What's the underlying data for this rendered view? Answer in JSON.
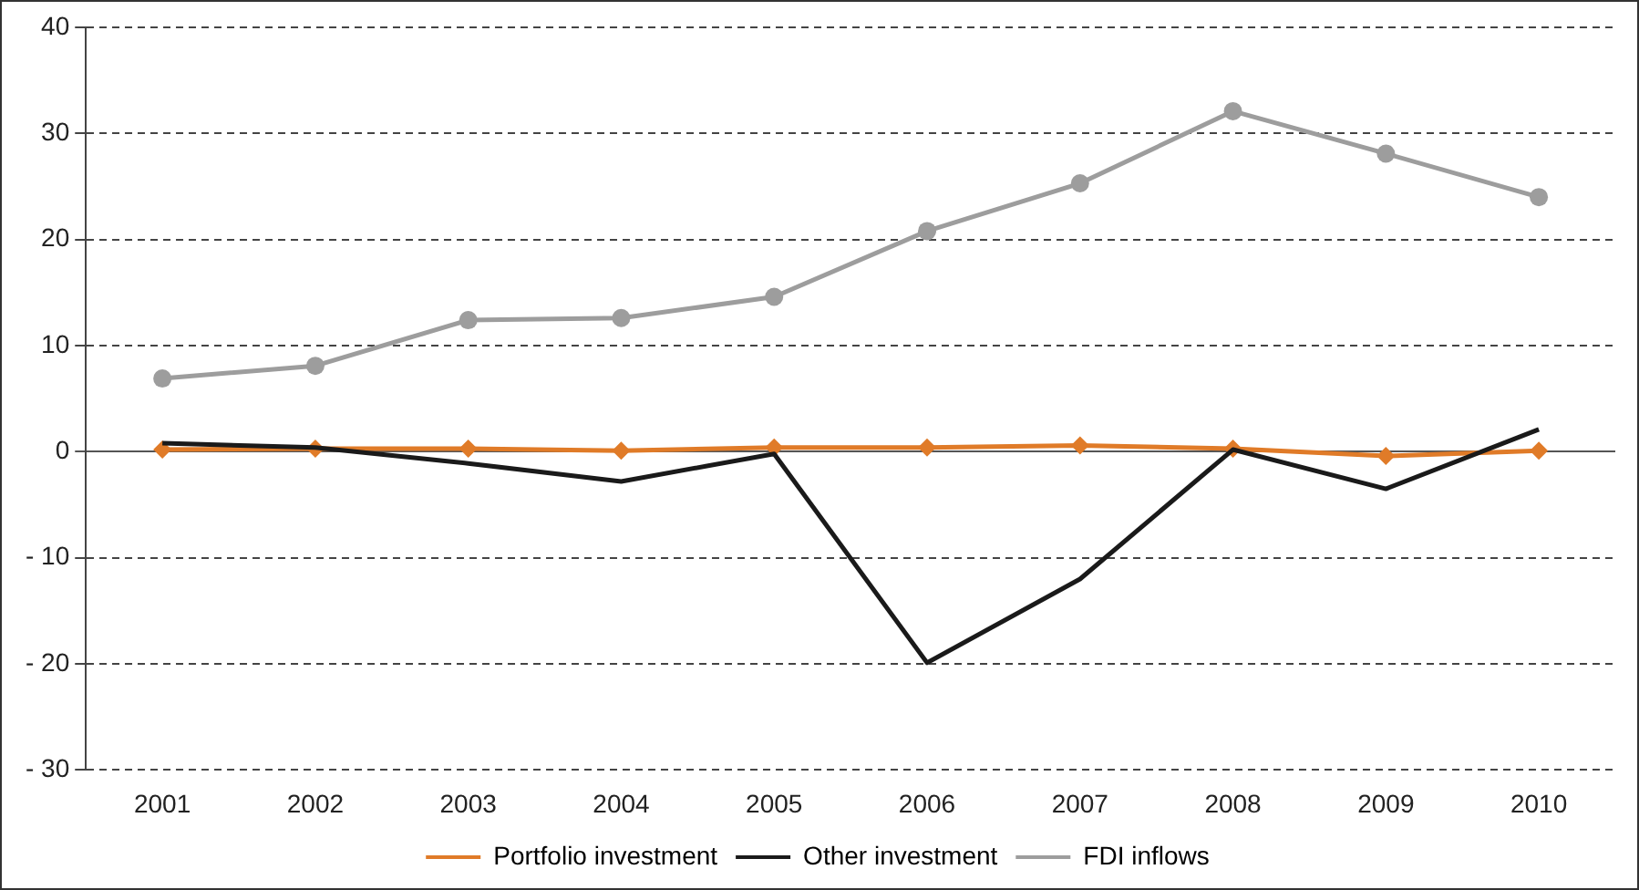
{
  "chart_data": {
    "type": "line",
    "categories": [
      "2001",
      "2002",
      "2003",
      "2004",
      "2005",
      "2006",
      "2007",
      "2008",
      "2009",
      "2010"
    ],
    "series": [
      {
        "name": "Portfolio investment",
        "color": "#e07b28",
        "marker": "diamond",
        "values": [
          0.2,
          0.3,
          0.3,
          0.1,
          0.4,
          0.4,
          0.6,
          0.3,
          -0.4,
          0.1
        ]
      },
      {
        "name": "Other investment",
        "color": "#1a1a1a",
        "marker": "none",
        "values": [
          0.8,
          0.4,
          -1.1,
          -2.8,
          -0.2,
          -19.9,
          -12,
          0.2,
          -3.5,
          2.1
        ]
      },
      {
        "name": "FDI inflows",
        "color": "#9d9d9d",
        "marker": "circle",
        "values": [
          6.9,
          8.1,
          12.4,
          12.6,
          14.6,
          20.8,
          25.3,
          32.1,
          28.1,
          24.0
        ]
      }
    ],
    "ylim": [
      -30,
      40
    ],
    "yticks": [
      {
        "value": -30,
        "label": "- 30"
      },
      {
        "value": -20,
        "label": "- 20"
      },
      {
        "value": -10,
        "label": "- 10"
      },
      0,
      10,
      20,
      30,
      40
    ],
    "grid": "y",
    "legend": "bottom",
    "line_style": "solid"
  }
}
